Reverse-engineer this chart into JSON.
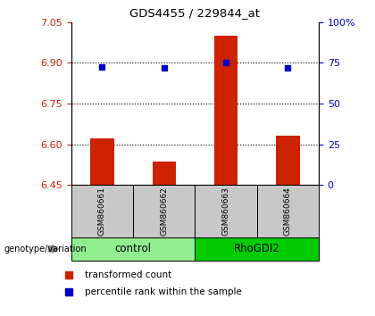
{
  "title": "GDS4455 / 229844_at",
  "samples": [
    "GSM860661",
    "GSM860662",
    "GSM860663",
    "GSM860664"
  ],
  "group_labels": [
    "control",
    "RhoGDI2"
  ],
  "group_colors": [
    "#90EE90",
    "#00CC00"
  ],
  "bar_values": [
    6.62,
    6.535,
    7.0,
    6.63
  ],
  "dot_values": [
    6.885,
    6.882,
    6.9,
    6.882
  ],
  "bar_color": "#CC2200",
  "dot_color": "#0000CC",
  "ylim_left": [
    6.45,
    7.05
  ],
  "ylim_right": [
    0,
    100
  ],
  "yticks_left": [
    6.45,
    6.6,
    6.75,
    6.9,
    7.05
  ],
  "yticks_right": [
    0,
    25,
    50,
    75,
    100
  ],
  "ytick_labels_right": [
    "0",
    "25",
    "50",
    "75",
    "100%"
  ],
  "grid_values": [
    6.6,
    6.75,
    6.9
  ],
  "bar_bottom": 6.45,
  "bar_width": 0.38,
  "label_legend_red": "transformed count",
  "label_legend_blue": "percentile rank within the sample",
  "genotype_label": "genotype/variation"
}
